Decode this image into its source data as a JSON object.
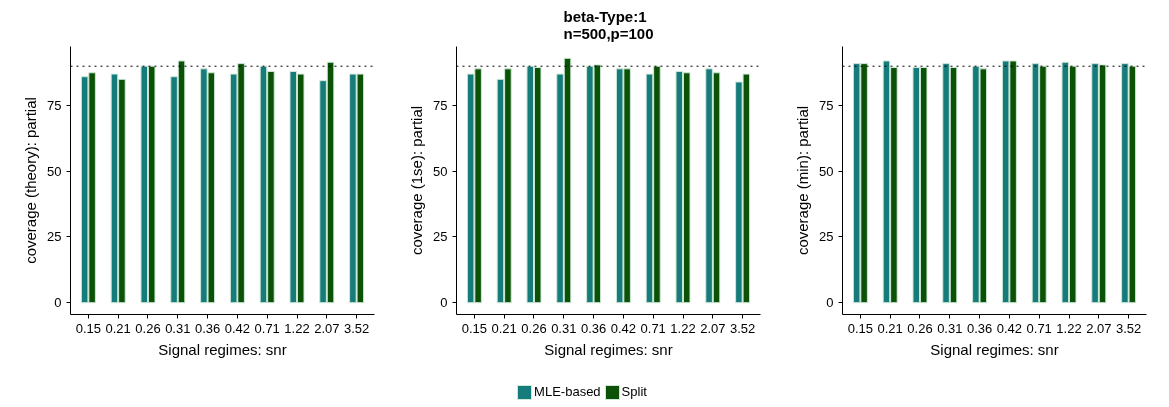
{
  "chart_data": [
    {
      "type": "bar",
      "xlabel": "Signal regimes: snr",
      "ylabel": "coverage (theory): partial",
      "categories": [
        "0.15",
        "0.21",
        "0.26",
        "0.31",
        "0.36",
        "0.42",
        "0.71",
        "1.22",
        "2.07",
        "3.52"
      ],
      "ylim": [
        -4.5,
        97.5
      ],
      "yticks": [
        0,
        25,
        50,
        75
      ],
      "grid": false,
      "series": [
        {
          "color": "#167b7b",
          "values": [
            86,
            87,
            90,
            86,
            89,
            87,
            90,
            88,
            84.5,
            87
          ]
        },
        {
          "color": "#0b5206",
          "values": [
            87.5,
            85,
            90,
            92,
            87.5,
            91,
            88,
            87,
            91.5,
            87
          ]
        }
      ],
      "ref_lines": [
        {
          "axis": "y",
          "value": 90,
          "line_style": "dotted",
          "color": "#000000"
        }
      ]
    },
    {
      "type": "bar",
      "title": "beta-Type:1\nn=500,p=100",
      "xlabel": "Signal regimes: snr",
      "ylabel": "coverage (1se): partial",
      "categories": [
        "0.15",
        "0.21",
        "0.26",
        "0.31",
        "0.36",
        "0.42",
        "0.71",
        "1.22",
        "2.07",
        "3.52"
      ],
      "ylim": [
        -4.5,
        97.5
      ],
      "yticks": [
        0,
        25,
        50,
        75
      ],
      "grid": false,
      "legend": "bottom",
      "series": [
        {
          "name": "MLE-based",
          "color": "#167b7b",
          "values": [
            87,
            85,
            90,
            87,
            90,
            89,
            87,
            88,
            89,
            84
          ]
        },
        {
          "name": "Split",
          "color": "#0b5206",
          "values": [
            89,
            89,
            89.5,
            93,
            90.5,
            89,
            90,
            87.5,
            87.5,
            87
          ]
        }
      ],
      "ref_lines": [
        {
          "axis": "y",
          "value": 90,
          "line_style": "dotted",
          "color": "#000000"
        }
      ]
    },
    {
      "type": "bar",
      "xlabel": "Signal regimes: snr",
      "ylabel": "coverage (min): partial",
      "categories": [
        "0.15",
        "0.21",
        "0.26",
        "0.31",
        "0.36",
        "0.42",
        "0.71",
        "1.22",
        "2.07",
        "3.52"
      ],
      "ylim": [
        -4.5,
        97.5
      ],
      "yticks": [
        0,
        25,
        50,
        75
      ],
      "grid": false,
      "series": [
        {
          "color": "#167b7b",
          "values": [
            91,
            92,
            89.5,
            91,
            90,
            92,
            91,
            91.5,
            91,
            91
          ]
        },
        {
          "color": "#0b5206",
          "values": [
            91,
            89.5,
            89.5,
            89.5,
            89,
            92,
            90,
            90,
            90.5,
            90
          ]
        }
      ],
      "ref_lines": [
        {
          "axis": "y",
          "value": 90,
          "line_style": "dotted",
          "color": "#000000"
        }
      ]
    }
  ]
}
